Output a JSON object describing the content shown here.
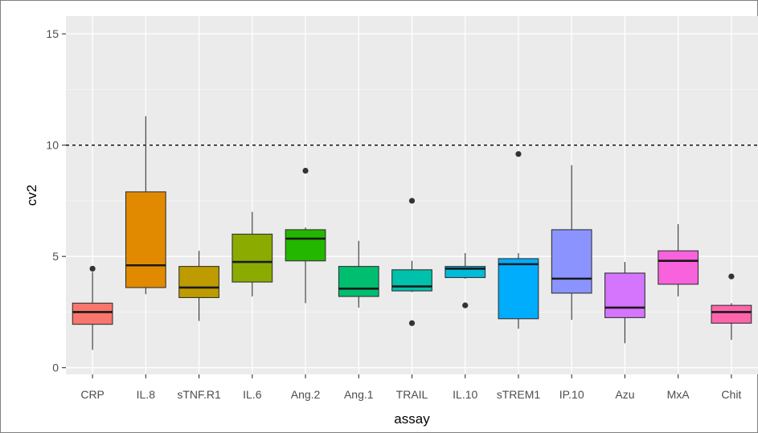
{
  "chart_data": {
    "type": "boxplot",
    "xlabel": "assay",
    "ylabel": "cv2",
    "ylim": [
      -0.3,
      15.8
    ],
    "yticks": [
      0,
      5,
      10,
      15
    ],
    "grid": true,
    "reference_line": {
      "y": 10,
      "style": "dashed"
    },
    "categories": [
      "CRP",
      "IL.8",
      "sTNF.R1",
      "IL.6",
      "Ang.2",
      "Ang.1",
      "TRAIL",
      "IL.10",
      "sTREM1",
      "IP.10",
      "Azu",
      "MxA",
      "Chit"
    ],
    "boxes": [
      {
        "category": "CRP",
        "color": "#F8766D",
        "min": 0.8,
        "q1": 1.95,
        "median": 2.5,
        "q3": 2.9,
        "max": 4.3,
        "outliers": [
          4.45
        ]
      },
      {
        "category": "IL.8",
        "color": "#E18A00",
        "min": 3.3,
        "q1": 3.6,
        "median": 4.6,
        "q3": 7.9,
        "max": 11.3,
        "outliers": []
      },
      {
        "category": "sTNF.R1",
        "color": "#BE9C00",
        "min": 2.1,
        "q1": 3.15,
        "median": 3.6,
        "q3": 4.55,
        "max": 5.25,
        "outliers": []
      },
      {
        "category": "IL.6",
        "color": "#8CAB00",
        "min": 3.2,
        "q1": 3.85,
        "median": 4.75,
        "q3": 6.0,
        "max": 7.0,
        "outliers": []
      },
      {
        "category": "Ang.2",
        "color": "#24B700",
        "min": 2.9,
        "q1": 4.8,
        "median": 5.8,
        "q3": 6.2,
        "max": 6.3,
        "outliers": [
          8.85
        ]
      },
      {
        "category": "Ang.1",
        "color": "#00BE70",
        "min": 2.7,
        "q1": 3.2,
        "median": 3.55,
        "q3": 4.55,
        "max": 5.7,
        "outliers": []
      },
      {
        "category": "TRAIL",
        "color": "#00C1AB",
        "min": 3.4,
        "q1": 3.45,
        "median": 3.65,
        "q3": 4.4,
        "max": 4.8,
        "outliers": [
          7.5,
          2.0
        ]
      },
      {
        "category": "IL.10",
        "color": "#00BBDA",
        "min": 4.0,
        "q1": 4.05,
        "median": 4.45,
        "q3": 4.55,
        "max": 5.15,
        "outliers": [
          2.8
        ]
      },
      {
        "category": "sTREM1",
        "color": "#00ACFC",
        "min": 1.75,
        "q1": 2.2,
        "median": 4.65,
        "q3": 4.9,
        "max": 5.15,
        "outliers": [
          9.6
        ]
      },
      {
        "category": "IP.10",
        "color": "#8B93FF",
        "min": 2.15,
        "q1": 3.35,
        "median": 4.0,
        "q3": 6.2,
        "max": 9.1,
        "outliers": []
      },
      {
        "category": "Azu",
        "color": "#D575FE",
        "min": 1.1,
        "q1": 2.25,
        "median": 2.7,
        "q3": 4.25,
        "max": 4.75,
        "outliers": []
      },
      {
        "category": "MxA",
        "color": "#F962DD",
        "min": 3.2,
        "q1": 3.75,
        "median": 4.8,
        "q3": 5.25,
        "max": 6.45,
        "outliers": []
      },
      {
        "category": "Chit",
        "color": "#FF65AC",
        "min": 1.25,
        "q1": 2.0,
        "median": 2.5,
        "q3": 2.8,
        "max": 2.9,
        "outliers": [
          4.1
        ]
      }
    ],
    "colors": {
      "panel": "#EBEBEB",
      "grid_major": "#FFFFFF",
      "box_outline": "#333333",
      "median": "#1a1a1a",
      "reference_line": "#000000"
    }
  }
}
